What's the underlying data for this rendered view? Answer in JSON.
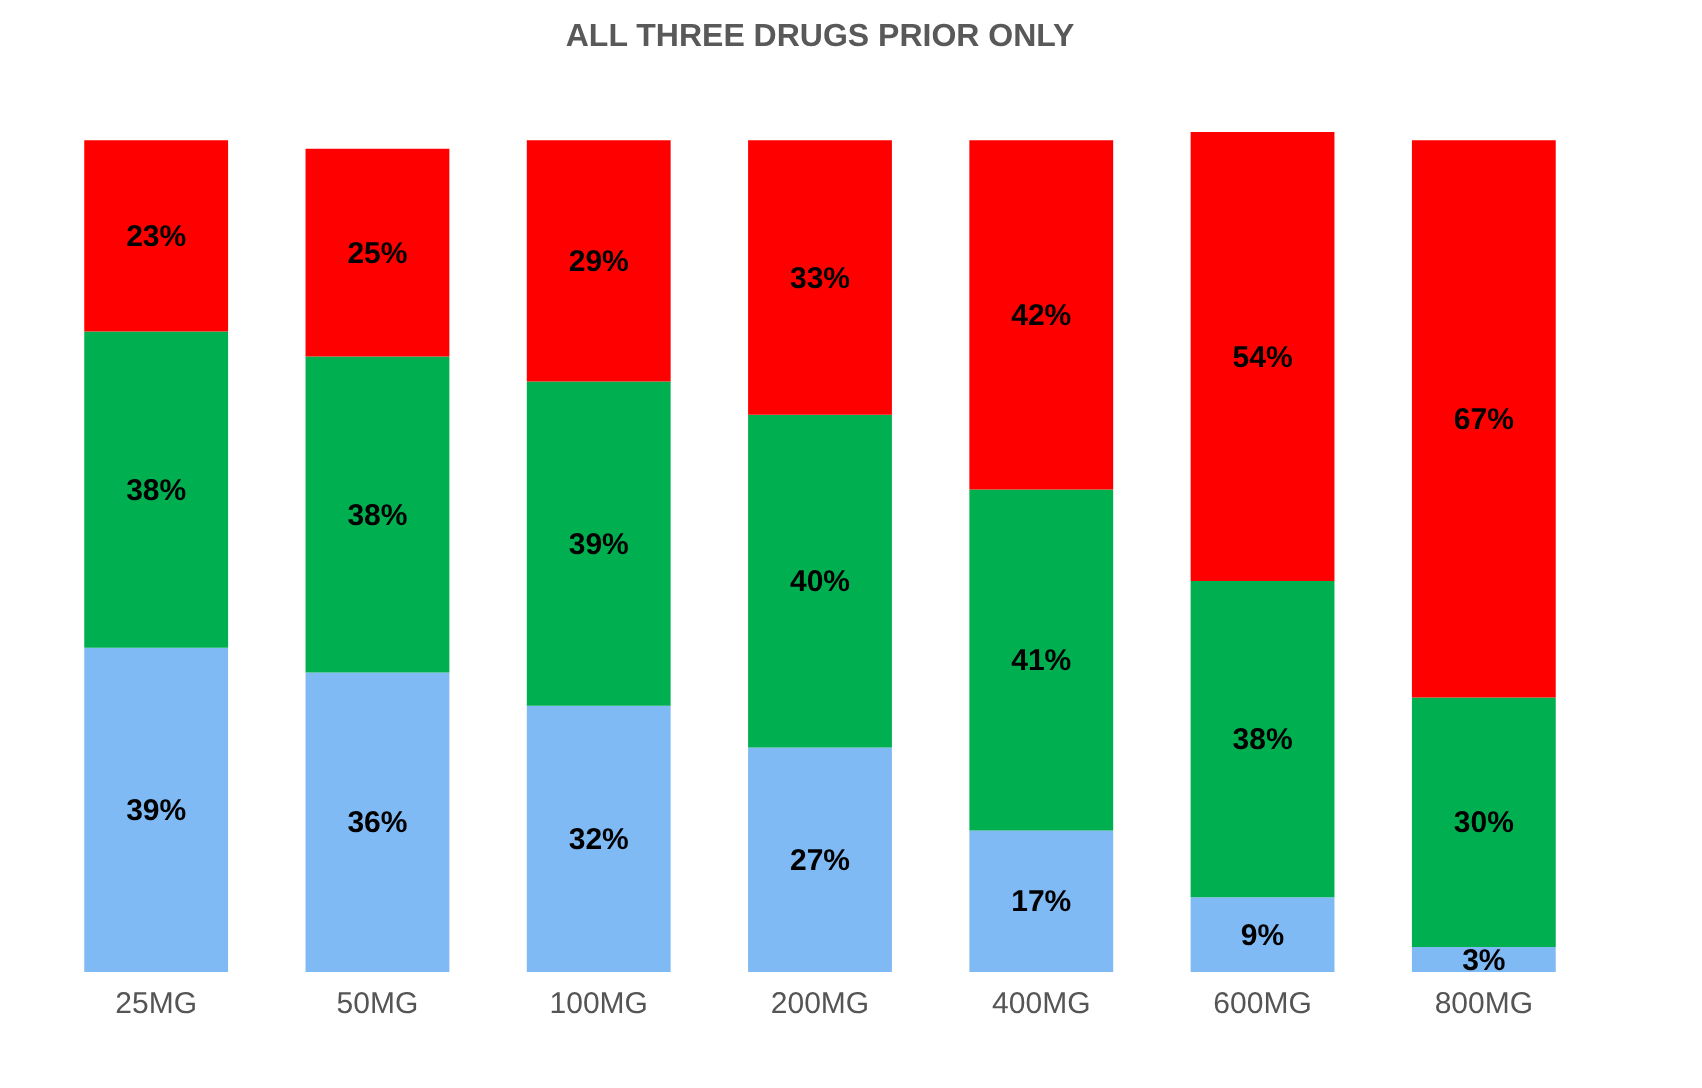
{
  "chart_data": {
    "type": "bar",
    "title": "ALL THREE DRUGS PRIOR ONLY",
    "stacked": true,
    "grid": false,
    "legend": false,
    "categories": [
      "25MG",
      "50MG",
      "100MG",
      "200MG",
      "400MG",
      "600MG",
      "800MG"
    ],
    "series": [
      {
        "color": "#7fbaf5",
        "values": [
          39,
          36,
          32,
          27,
          17,
          9,
          3
        ],
        "value_labels": [
          "39%",
          "36%",
          "32%",
          "27%",
          "17%",
          "9%",
          "3%"
        ]
      },
      {
        "color": "#00b050",
        "values": [
          38,
          38,
          39,
          40,
          41,
          38,
          30
        ],
        "value_labels": [
          "38%",
          "38%",
          "39%",
          "40%",
          "41%",
          "38%",
          "30%"
        ]
      },
      {
        "color": "#ff0000",
        "values": [
          23,
          25,
          29,
          33,
          42,
          54,
          67
        ],
        "value_labels": [
          "23%",
          "25%",
          "29%",
          "33%",
          "42%",
          "54%",
          "67%"
        ]
      }
    ]
  }
}
